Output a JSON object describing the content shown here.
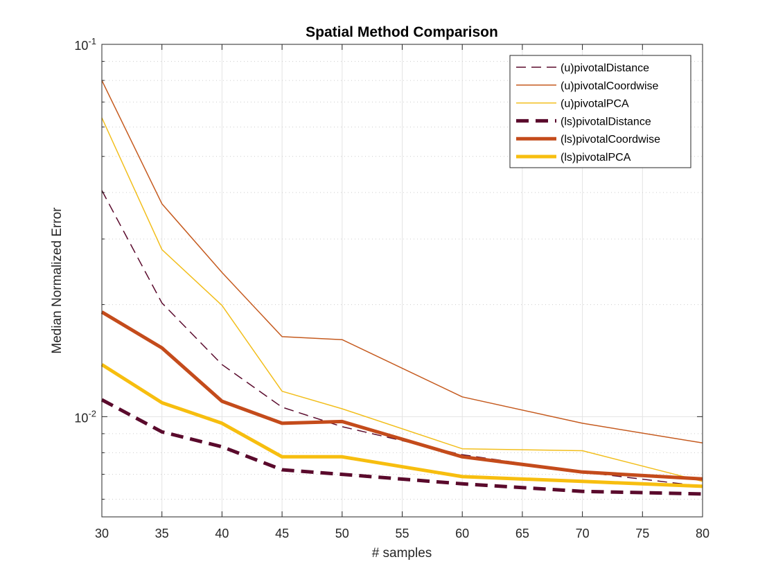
{
  "chart_data": {
    "type": "line",
    "title": "Spatial Method Comparison",
    "xlabel": "# samples",
    "ylabel": "Median Normalized Error",
    "xlim": [
      30,
      80
    ],
    "ylim": [
      0.00538,
      0.1
    ],
    "yscale": "log",
    "grid": true,
    "legend_position": "top-right",
    "xticks": [
      30,
      35,
      40,
      45,
      50,
      55,
      60,
      65,
      70,
      75,
      80
    ],
    "xtick_labels": [
      "30",
      "35",
      "40",
      "45",
      "50",
      "55",
      "60",
      "65",
      "70",
      "75",
      "80"
    ],
    "ytick_labels": [
      {
        "value": 0.01,
        "base": "10",
        "exponent": "-2"
      },
      {
        "value": 0.1,
        "base": "10",
        "exponent": "-1"
      }
    ],
    "x": [
      30,
      35,
      40,
      45,
      50,
      60,
      70,
      80
    ],
    "series": [
      {
        "name": "(u)pivotalDistance",
        "color": "#5a0a2c",
        "style": "dashed",
        "weight": "thin",
        "values": [
          0.0405,
          0.0202,
          0.0138,
          0.0106,
          0.0094,
          0.0079,
          0.0071,
          0.0065
        ]
      },
      {
        "name": "(u)pivotalCoordwise",
        "color": "#c55a1e",
        "style": "solid",
        "weight": "thin",
        "values": [
          0.08,
          0.0373,
          0.0244,
          0.0164,
          0.0161,
          0.0113,
          0.0096,
          0.0085
        ]
      },
      {
        "name": "(u)pivotalPCA",
        "color": "#f2be1b",
        "style": "solid",
        "weight": "thin",
        "values": [
          0.0635,
          0.0281,
          0.0199,
          0.0117,
          0.0105,
          0.0082,
          0.0081,
          0.0067
        ]
      },
      {
        "name": "(ls)pivotalDistance",
        "color": "#5a0a2c",
        "style": "dashed",
        "weight": "thick",
        "values": [
          0.0111,
          0.0091,
          0.0083,
          0.0072,
          0.007,
          0.0066,
          0.0063,
          0.0062
        ]
      },
      {
        "name": "(ls)pivotalCoordwise",
        "color": "#c44b1b",
        "style": "solid",
        "weight": "thick",
        "values": [
          0.0191,
          0.0153,
          0.011,
          0.0096,
          0.0097,
          0.0078,
          0.0071,
          0.0068
        ]
      },
      {
        "name": "(ls)pivotalPCA",
        "color": "#f7be0f",
        "style": "solid",
        "weight": "thick",
        "values": [
          0.0138,
          0.0109,
          0.0096,
          0.0078,
          0.0078,
          0.0069,
          0.0067,
          0.0065
        ]
      }
    ]
  }
}
